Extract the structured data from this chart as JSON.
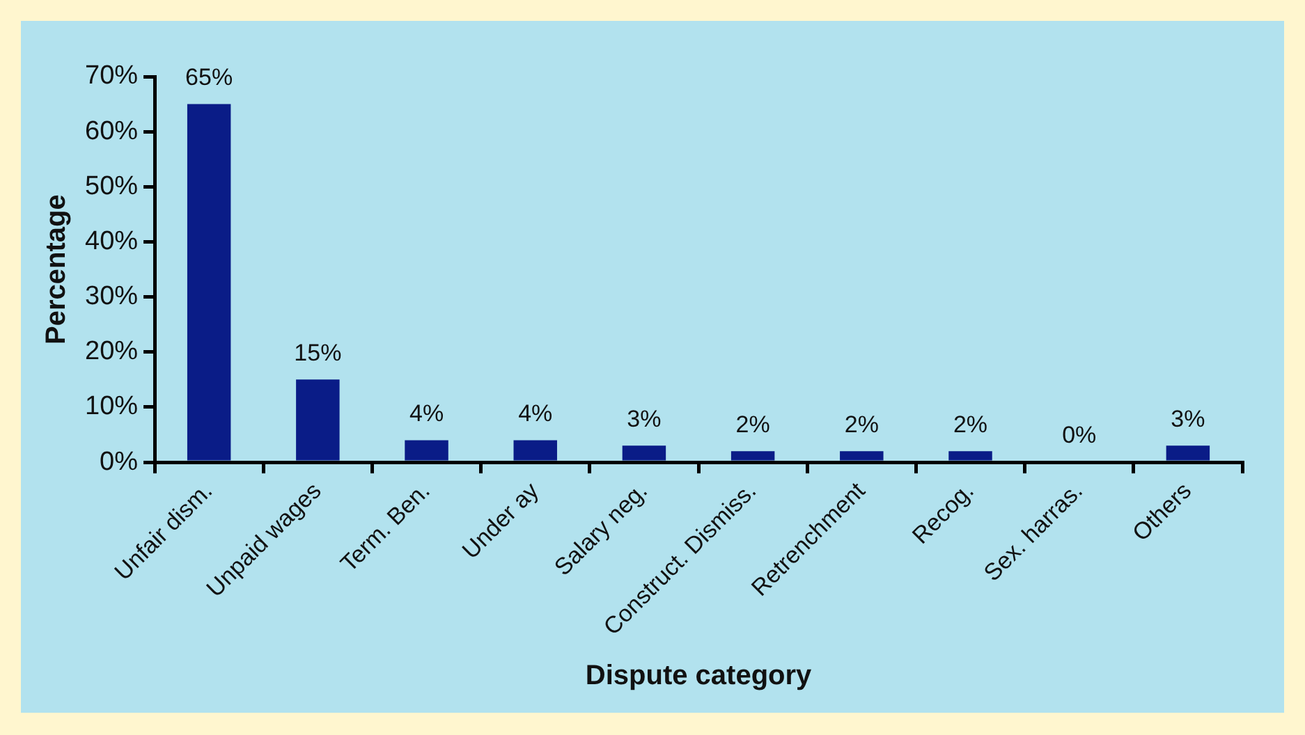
{
  "chart_data": {
    "type": "bar",
    "xlabel": "Dispute category",
    "ylabel": "Percentage",
    "categories": [
      "Unfair dism.",
      "Unpaid wages",
      "Term. Ben.",
      "Under ay",
      "Salary neg.",
      "Construct. Dismiss.",
      "Retrenchment",
      "Recog.",
      "Sex. harras.",
      "Others"
    ],
    "values": [
      65,
      15,
      4,
      4,
      3,
      2,
      2,
      2,
      0,
      3
    ],
    "value_labels": [
      "65%",
      "15%",
      "4%",
      "4%",
      "3%",
      "2%",
      "2%",
      "2%",
      "0%",
      "3%"
    ],
    "color": "#0a1c87",
    "ylim": [
      0,
      70
    ],
    "yticks": [
      {
        "value": 0,
        "label": "0%"
      },
      {
        "value": 10,
        "label": "10%"
      },
      {
        "value": 20,
        "label": "20%"
      },
      {
        "value": 30,
        "label": "30%"
      },
      {
        "value": 40,
        "label": "40%"
      },
      {
        "value": 50,
        "label": "50%"
      },
      {
        "value": 60,
        "label": "60%"
      },
      {
        "value": 70,
        "label": "70%"
      }
    ],
    "grid": false,
    "legend": false
  }
}
